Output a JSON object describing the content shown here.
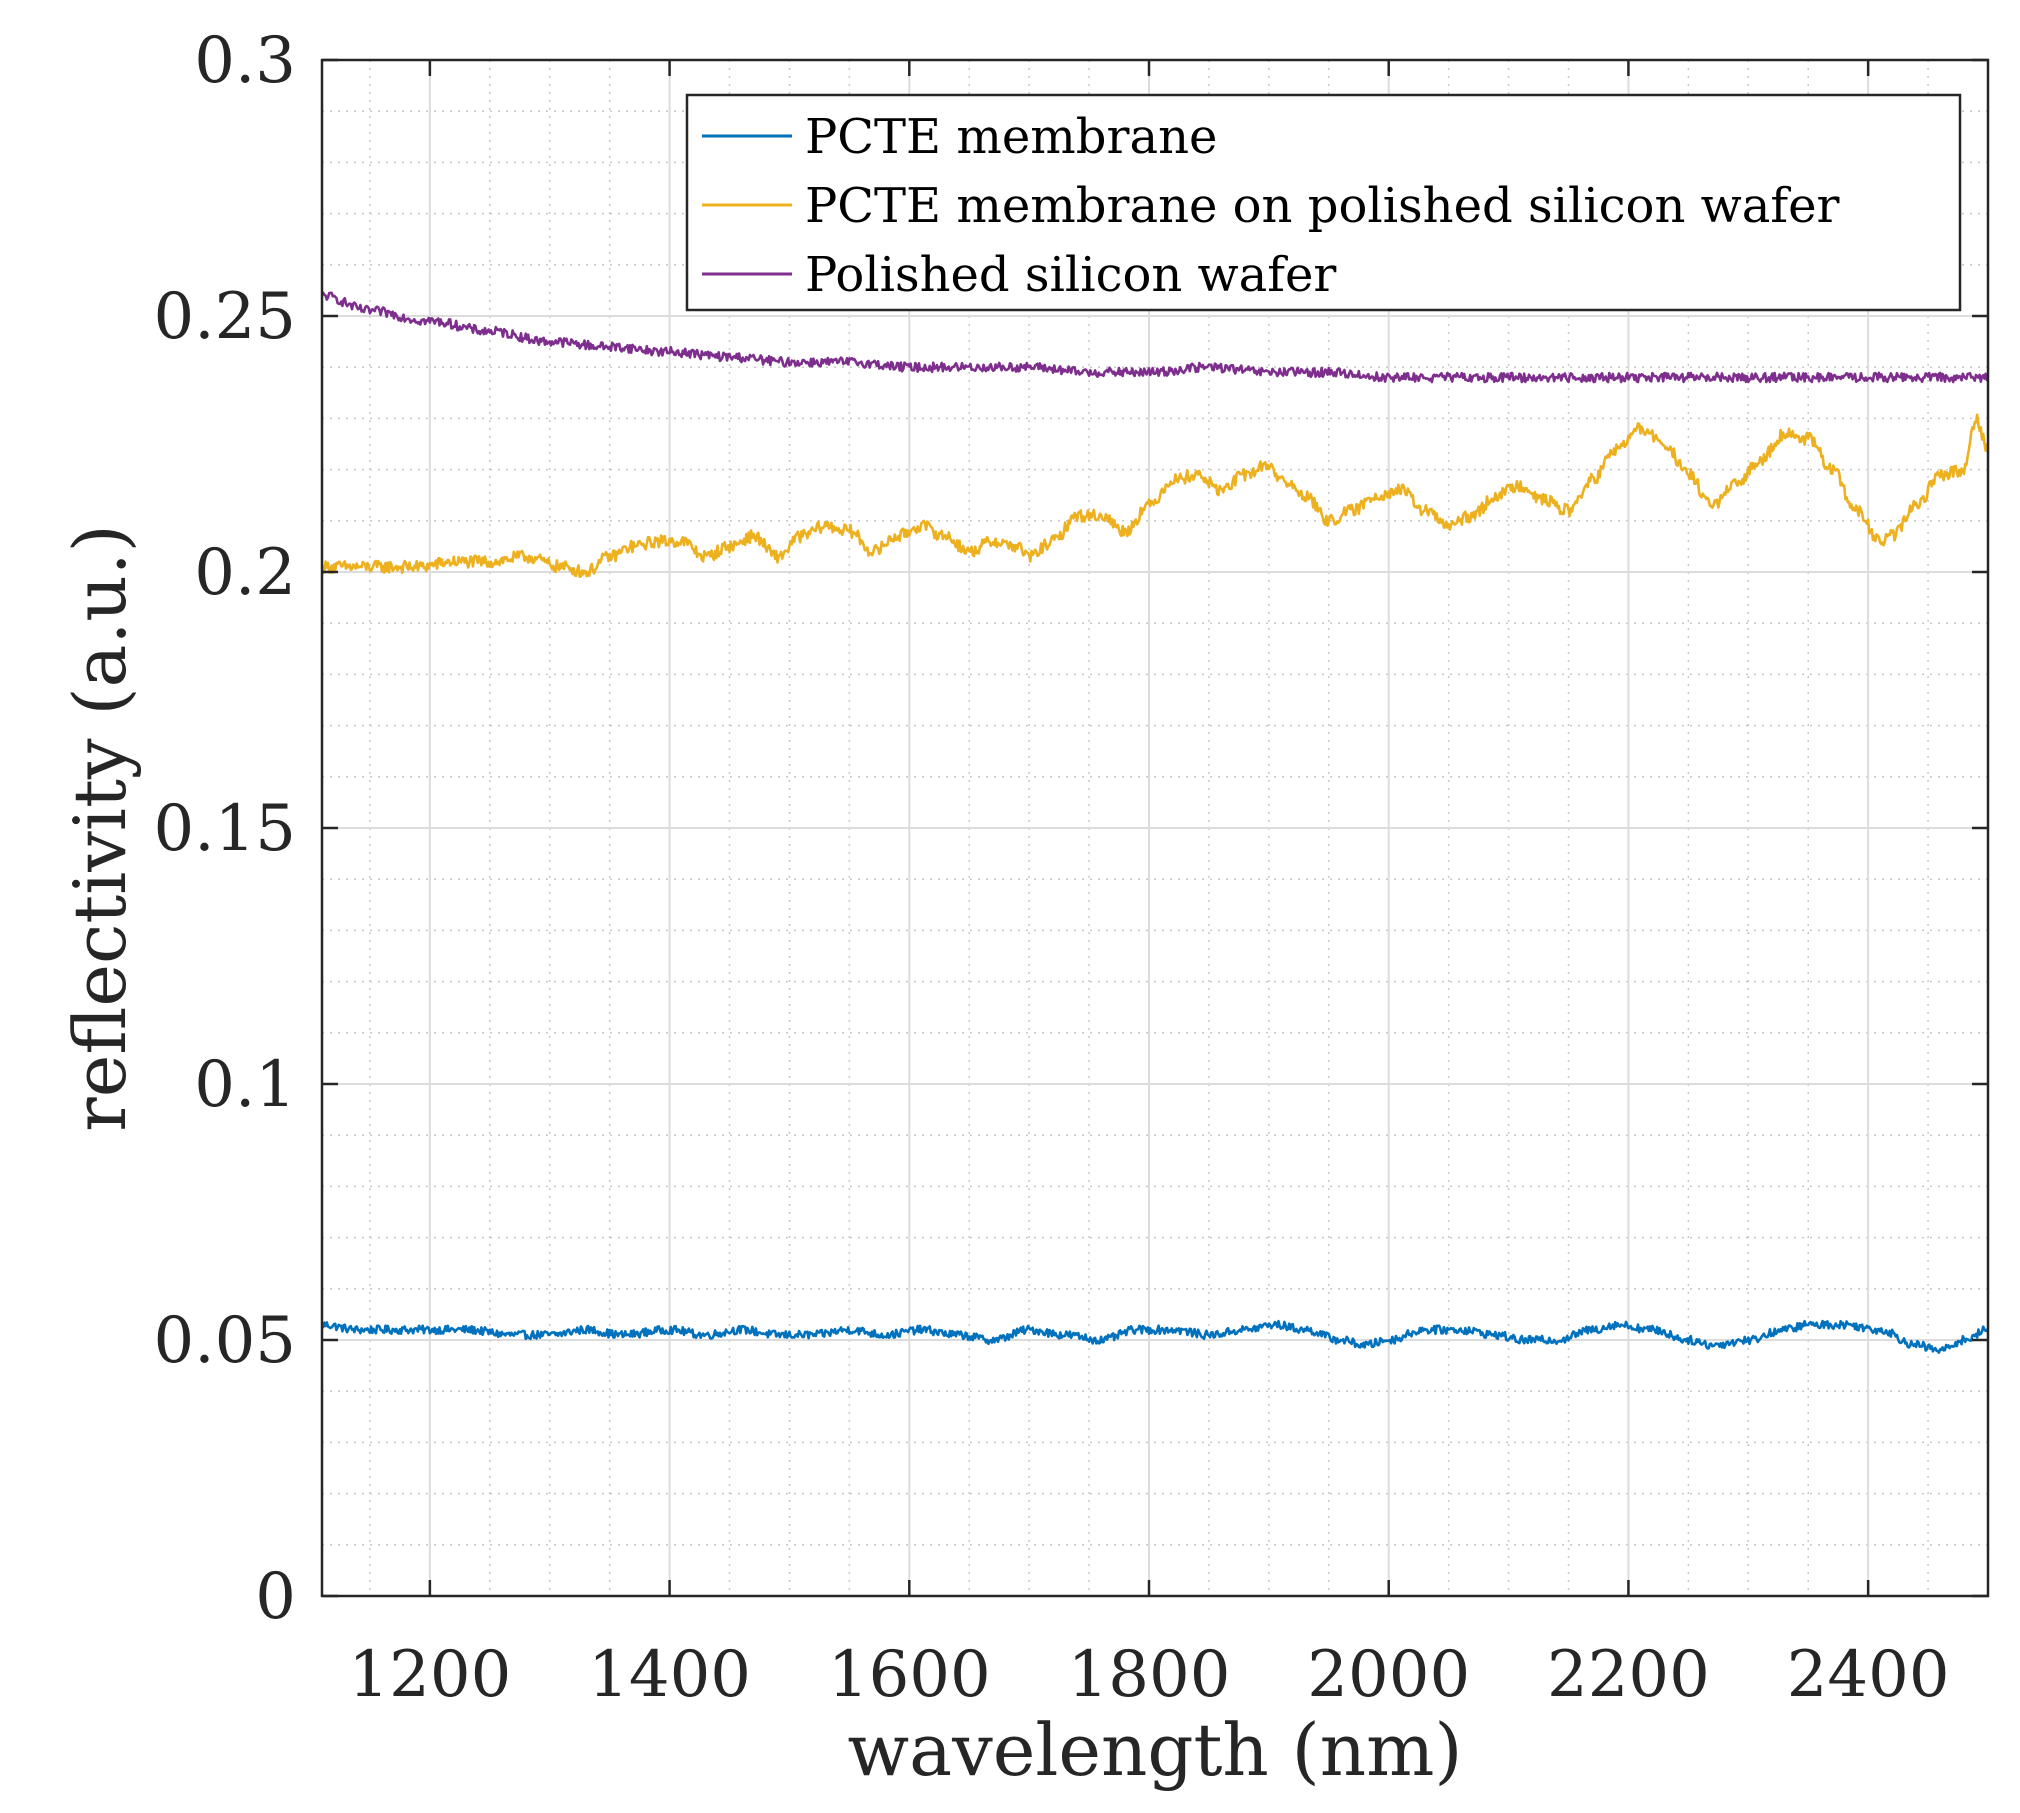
{
  "chart_data": {
    "type": "line",
    "xlabel": "wavelength (nm)",
    "ylabel": "reflectivity (a.u.)",
    "xlim": [
      1110,
      2500
    ],
    "ylim": [
      0,
      0.3
    ],
    "xticks": [
      "1200",
      "1400",
      "1600",
      "1800",
      "2000",
      "2200",
      "2400"
    ],
    "yticks": [
      "0",
      "0.05",
      "0.1",
      "0.15",
      "0.2",
      "0.25",
      "0.3"
    ],
    "grid": true,
    "minor_grid": true,
    "legend_position": "top-right",
    "series": [
      {
        "name": "PCTE membrane",
        "color": "#0072BD",
        "x": [
          1110,
          1140,
          1180,
          1230,
          1270,
          1300,
          1330,
          1360,
          1400,
          1430,
          1460,
          1490,
          1520,
          1550,
          1580,
          1610,
          1640,
          1670,
          1700,
          1730,
          1760,
          1790,
          1820,
          1850,
          1880,
          1905,
          1930,
          1960,
          1980,
          2000,
          2030,
          2060,
          2090,
          2110,
          2140,
          2170,
          2190,
          2220,
          2250,
          2270,
          2300,
          2330,
          2350,
          2380,
          2410,
          2440,
          2460,
          2480,
          2500
        ],
        "y": [
          0.053,
          0.052,
          0.052,
          0.052,
          0.051,
          0.051,
          0.052,
          0.051,
          0.052,
          0.051,
          0.052,
          0.051,
          0.051,
          0.052,
          0.051,
          0.052,
          0.051,
          0.05,
          0.052,
          0.051,
          0.05,
          0.052,
          0.052,
          0.051,
          0.052,
          0.053,
          0.052,
          0.05,
          0.049,
          0.05,
          0.052,
          0.052,
          0.051,
          0.05,
          0.05,
          0.052,
          0.053,
          0.052,
          0.05,
          0.049,
          0.05,
          0.052,
          0.053,
          0.053,
          0.052,
          0.049,
          0.048,
          0.05,
          0.052
        ]
      },
      {
        "name": "PCTE membrane on polished silicon wafer",
        "color": "#EDB120",
        "x": [
          1110,
          1150,
          1190,
          1220,
          1250,
          1280,
          1310,
          1330,
          1350,
          1370,
          1390,
          1410,
          1430,
          1450,
          1470,
          1490,
          1510,
          1530,
          1550,
          1570,
          1590,
          1610,
          1630,
          1650,
          1670,
          1690,
          1700,
          1720,
          1740,
          1760,
          1780,
          1800,
          1820,
          1840,
          1860,
          1880,
          1900,
          1910,
          1930,
          1950,
          1970,
          1990,
          2010,
          2030,
          2050,
          2070,
          2090,
          2110,
          2130,
          2150,
          2170,
          2190,
          2210,
          2230,
          2250,
          2270,
          2290,
          2310,
          2330,
          2350,
          2370,
          2390,
          2410,
          2420,
          2440,
          2460,
          2480,
          2490,
          2500
        ],
        "y": [
          0.201,
          0.201,
          0.201,
          0.202,
          0.202,
          0.203,
          0.201,
          0.2,
          0.203,
          0.205,
          0.206,
          0.206,
          0.203,
          0.205,
          0.207,
          0.203,
          0.207,
          0.209,
          0.208,
          0.204,
          0.207,
          0.209,
          0.207,
          0.204,
          0.206,
          0.205,
          0.203,
          0.206,
          0.211,
          0.211,
          0.208,
          0.213,
          0.218,
          0.219,
          0.216,
          0.219,
          0.221,
          0.218,
          0.215,
          0.21,
          0.212,
          0.215,
          0.216,
          0.212,
          0.209,
          0.211,
          0.215,
          0.217,
          0.214,
          0.212,
          0.218,
          0.224,
          0.228,
          0.225,
          0.219,
          0.213,
          0.217,
          0.222,
          0.227,
          0.226,
          0.22,
          0.212,
          0.206,
          0.207,
          0.213,
          0.219,
          0.22,
          0.23,
          0.224
        ]
      },
      {
        "name": "Polished silicon wafer",
        "color": "#7E2F8E",
        "x": [
          1110,
          1150,
          1200,
          1250,
          1300,
          1350,
          1400,
          1450,
          1500,
          1550,
          1600,
          1650,
          1700,
          1750,
          1800,
          1850,
          1900,
          1950,
          2000,
          2100,
          2200,
          2300,
          2400,
          2500
        ],
        "y": [
          0.254,
          0.251,
          0.249,
          0.247,
          0.245,
          0.244,
          0.243,
          0.242,
          0.241,
          0.241,
          0.24,
          0.24,
          0.24,
          0.239,
          0.239,
          0.24,
          0.239,
          0.239,
          0.238,
          0.238,
          0.238,
          0.238,
          0.238,
          0.238
        ]
      }
    ]
  }
}
